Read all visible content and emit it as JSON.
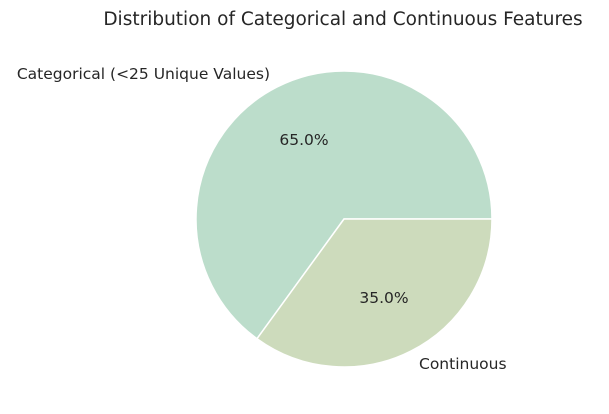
{
  "chart_data": {
    "type": "pie",
    "title": "Distribution of Categorical and Continuous Features",
    "slices": [
      {
        "label": "Categorical (<25 Unique Values)",
        "value": 65.0,
        "pct_label": "65.0%",
        "color": "#bcddcb"
      },
      {
        "label": "Continuous",
        "value": 35.0,
        "pct_label": "35.0%",
        "color": "#cddbbc"
      }
    ],
    "start_angle_deg": 0,
    "direction": "counterclockwise",
    "edge_color": "#ffffff"
  }
}
